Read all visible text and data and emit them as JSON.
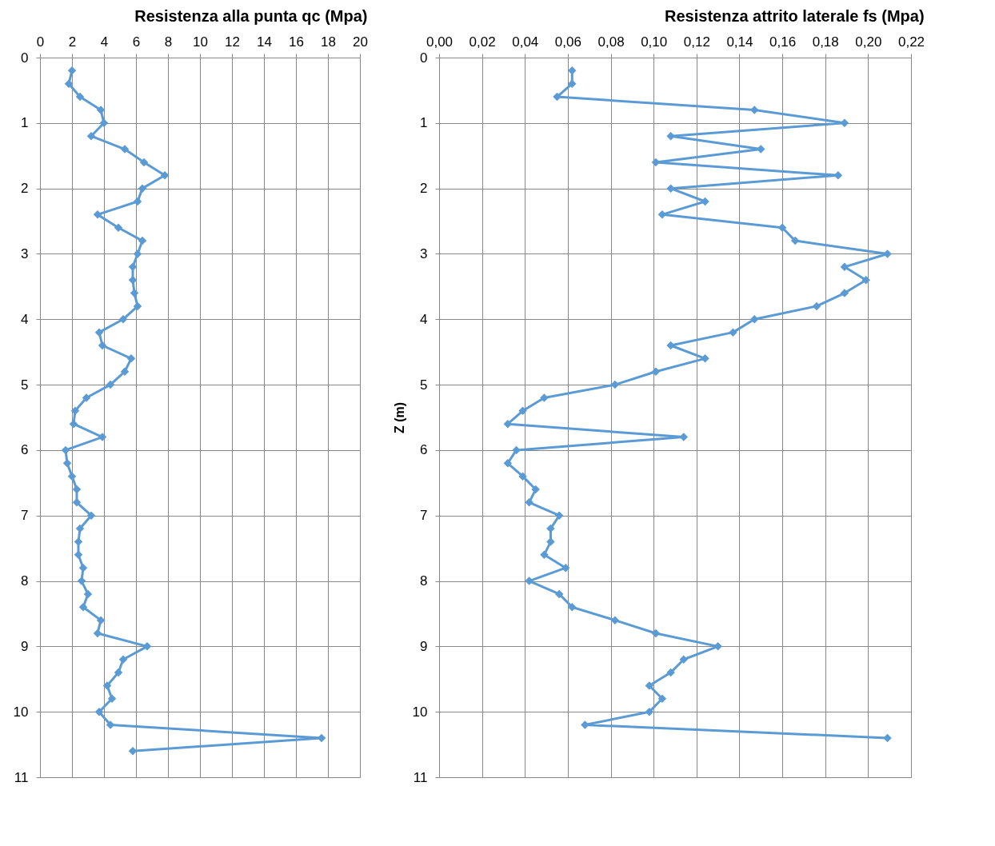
{
  "chart_data": [
    {
      "type": "line",
      "title": "Resistenza alla punta qc (Mpa)",
      "marker": "diamond",
      "line_style": "solid",
      "grid": true,
      "xlim": [
        0,
        20
      ],
      "xticks": [
        0,
        2,
        4,
        6,
        8,
        10,
        12,
        14,
        16,
        18,
        20
      ],
      "ylim": [
        11,
        0
      ],
      "yticks": [
        0,
        1,
        2,
        3,
        4,
        5,
        6,
        7,
        8,
        9,
        10,
        11
      ],
      "series": [
        {
          "color": "#5b9bd5",
          "x": [
            2.0,
            1.8,
            2.5,
            3.8,
            4.0,
            3.2,
            5.3,
            6.5,
            7.8,
            6.4,
            6.1,
            3.6,
            4.9,
            6.4,
            6.1,
            5.8,
            5.8,
            5.9,
            6.1,
            5.2,
            3.7,
            3.9,
            5.7,
            5.3,
            4.4,
            2.9,
            2.2,
            2.1,
            3.9,
            1.6,
            1.7,
            2.0,
            2.3,
            2.3,
            3.2,
            2.5,
            2.4,
            2.4,
            2.7,
            2.6,
            3.0,
            2.7,
            3.8,
            3.6,
            6.7,
            5.2,
            4.9,
            4.2,
            4.5,
            3.7,
            4.4,
            17.6,
            5.8
          ],
          "values": [
            0.2,
            0.4,
            0.6,
            0.8,
            1.0,
            1.2,
            1.4,
            1.6,
            1.8,
            2.0,
            2.2,
            2.4,
            2.6,
            2.8,
            3.0,
            3.2,
            3.4,
            3.6,
            3.8,
            4.0,
            4.2,
            4.4,
            4.6,
            4.8,
            5.0,
            5.2,
            5.4,
            5.6,
            5.8,
            6.0,
            6.2,
            6.4,
            6.6,
            6.8,
            7.0,
            7.2,
            7.4,
            7.6,
            7.8,
            8.0,
            8.2,
            8.4,
            8.6,
            8.8,
            9.0,
            9.2,
            9.4,
            9.6,
            9.8,
            10.0,
            10.2,
            10.4,
            10.6
          ]
        }
      ]
    },
    {
      "type": "line",
      "title": "Resistenza attrito laterale fs (Mpa)",
      "ylabel": "Z (m)",
      "marker": "diamond",
      "line_style": "solid",
      "grid": true,
      "xlim": [
        0,
        0.22
      ],
      "xticks": [
        {
          "value": 0,
          "label": "0,00"
        },
        {
          "value": 0.02,
          "label": "0,02"
        },
        {
          "value": 0.04,
          "label": "0,04"
        },
        {
          "value": 0.06,
          "label": "0,06"
        },
        {
          "value": 0.08,
          "label": "0,08"
        },
        {
          "value": 0.1,
          "label": "0,10"
        },
        {
          "value": 0.12,
          "label": "0,12"
        },
        {
          "value": 0.14,
          "label": "0,14"
        },
        {
          "value": 0.16,
          "label": "0,16"
        },
        {
          "value": 0.18,
          "label": "0,18"
        },
        {
          "value": 0.2,
          "label": "0,20"
        },
        {
          "value": 0.22,
          "label": "0,22"
        }
      ],
      "ylim": [
        11,
        0
      ],
      "yticks": [
        0,
        1,
        2,
        3,
        4,
        5,
        6,
        7,
        8,
        9,
        10,
        11
      ],
      "series": [
        {
          "color": "#5b9bd5",
          "x": [
            0.062,
            0.062,
            0.055,
            0.147,
            0.189,
            0.108,
            0.15,
            0.101,
            0.186,
            0.108,
            0.124,
            0.104,
            0.16,
            0.166,
            0.209,
            0.189,
            0.199,
            0.189,
            0.176,
            0.147,
            0.137,
            0.108,
            0.124,
            0.101,
            0.082,
            0.049,
            0.039,
            0.032,
            0.114,
            0.036,
            0.032,
            0.039,
            0.045,
            0.042,
            0.056,
            0.052,
            0.052,
            0.049,
            0.059,
            0.042,
            0.056,
            0.062,
            0.082,
            0.101,
            0.13,
            0.114,
            0.108,
            0.098,
            0.104,
            0.098,
            0.068,
            0.209
          ],
          "values": [
            0.2,
            0.4,
            0.6,
            0.8,
            1.0,
            1.2,
            1.4,
            1.6,
            1.8,
            2.0,
            2.2,
            2.4,
            2.6,
            2.8,
            3.0,
            3.2,
            3.4,
            3.6,
            3.8,
            4.0,
            4.2,
            4.4,
            4.6,
            4.8,
            5.0,
            5.2,
            5.4,
            5.6,
            5.8,
            6.0,
            6.2,
            6.4,
            6.6,
            6.8,
            7.0,
            7.2,
            7.4,
            7.6,
            7.8,
            8.0,
            8.2,
            8.4,
            8.6,
            8.8,
            9.0,
            9.2,
            9.4,
            9.6,
            9.8,
            10.0,
            10.2,
            10.4
          ]
        }
      ]
    }
  ]
}
